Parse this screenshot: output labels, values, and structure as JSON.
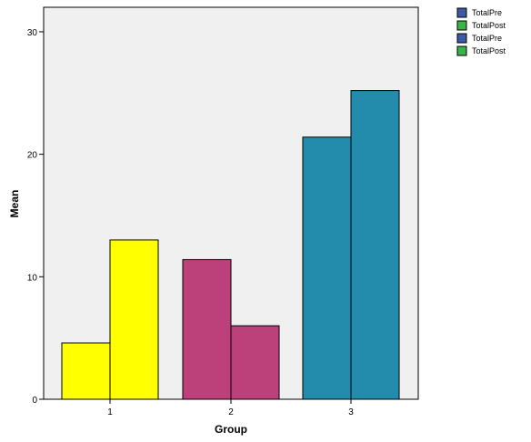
{
  "chart_data": {
    "type": "bar",
    "xlabel": "Group",
    "ylabel": "Mean",
    "categories": [
      "1",
      "2",
      "3"
    ],
    "ylim": [
      0,
      32
    ],
    "yticks": [
      0,
      10,
      20,
      30
    ],
    "series": [
      {
        "name": "TotalPre",
        "values": [
          4.6,
          11.4,
          21.4
        ]
      },
      {
        "name": "TotalPost",
        "values": [
          13.0,
          6.0,
          25.2
        ]
      }
    ],
    "category_colors": [
      "#ffff00",
      "#bc417b",
      "#238bac"
    ],
    "grid": false,
    "plot_background": "#f0f0f0",
    "legend": {
      "position": "top-right",
      "entries": [
        {
          "label": "TotalPre",
          "color": "#3c5aa8"
        },
        {
          "label": "TotalPost",
          "color": "#3ab44a"
        },
        {
          "label": "TotalPre",
          "color": "#3c5aa8"
        },
        {
          "label": "TotalPost",
          "color": "#3ab44a"
        }
      ]
    }
  }
}
